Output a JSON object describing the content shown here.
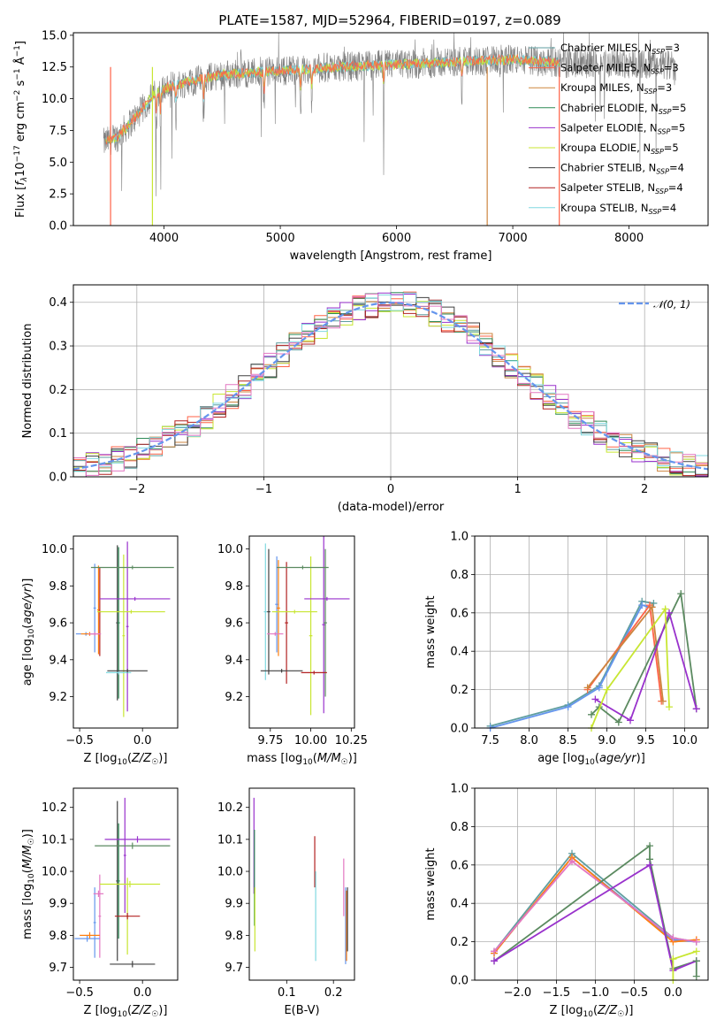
{
  "figure": {
    "title": "PLATE=1587, MJD=52964, FIBERID=0197, z=0.089"
  },
  "colors": {
    "Chabrier MILES": "#5f9ea0",
    "Salpeter MILES": "#ff6347",
    "Kroupa MILES": "#cd853f",
    "Chabrier ELODIE": "#2e8b57",
    "Salpeter ELODIE": "#9932cc",
    "Kroupa ELODIE": "#c8e632",
    "Chabrier STELIB": "#404040",
    "Salpeter STELIB": "#b22222",
    "Kroupa STELIB": "#80d8e0",
    "data": "#808080",
    "pink": "#e377c2",
    "blue": "#6495ed",
    "orange": "#ff7f0e",
    "purple": "#9932cc",
    "green": "#5b8a60",
    "gaussian": "#6495ed"
  },
  "chart_data": [
    {
      "id": "spectrum",
      "type": "line",
      "title": "PLATE=1587, MJD=52964, FIBERID=0197, z=0.089",
      "xlabel": "wavelength [Angstrom, rest frame]",
      "ylabel": "Flux [f_λ 10^-17 erg cm^-2 s^-1 Å^-1]",
      "xlim": [
        3220,
        8680
      ],
      "ylim": [
        0,
        15.2
      ],
      "xticks": [
        4000,
        5000,
        6000,
        7000,
        8000
      ],
      "yticks": [
        0.0,
        2.5,
        5.0,
        7.5,
        10.0,
        12.5,
        15.0
      ],
      "ytick_labels": [
        "0.0",
        "2.5",
        "5.0",
        "7.5",
        "10.0",
        "12.5",
        "15.0"
      ],
      "legend_position": "right",
      "legend": [
        {
          "name": "Chabrier MILES",
          "nssp": "3",
          "color": "#5f9ea0"
        },
        {
          "name": "Salpeter MILES",
          "nssp": "3",
          "color": "#ff6347"
        },
        {
          "name": "Kroupa MILES",
          "nssp": "3",
          "color": "#cd853f"
        },
        {
          "name": "Chabrier ELODIE",
          "nssp": "5",
          "color": "#2e8b57"
        },
        {
          "name": "Salpeter ELODIE",
          "nssp": "5",
          "color": "#9932cc"
        },
        {
          "name": "Kroupa ELODIE",
          "nssp": "5",
          "color": "#c8e632"
        },
        {
          "name": "Chabrier STELIB",
          "nssp": "4",
          "color": "#404040"
        },
        {
          "name": "Salpeter STELIB",
          "nssp": "4",
          "color": "#b22222"
        },
        {
          "name": "Kroupa STELIB",
          "nssp": "4",
          "color": "#80d8e0"
        }
      ],
      "continuum": {
        "x": [
          3480,
          3600,
          3700,
          3800,
          3900,
          4000,
          4200,
          4500,
          5000,
          5500,
          6000,
          6500,
          7000,
          7500,
          8000,
          8400
        ],
        "y": [
          6.5,
          7.0,
          8.0,
          9.0,
          10.2,
          10.8,
          11.3,
          11.9,
          12.2,
          12.5,
          12.7,
          12.9,
          13.1,
          12.8,
          12.8,
          12.6
        ]
      },
      "data_range": [
        3480,
        8400
      ],
      "model_range": [
        3500,
        7400
      ]
    },
    {
      "id": "residuals",
      "type": "bar",
      "xlabel": "(data-model)/error",
      "ylabel": "Normed distribution",
      "xlim": [
        -2.5,
        2.5
      ],
      "ylim": [
        0,
        0.44
      ],
      "xticks": [
        -2,
        -1,
        0,
        1,
        2
      ],
      "xtick_labels": [
        "−2",
        "−1",
        "0",
        "1",
        "2"
      ],
      "yticks": [
        0.0,
        0.1,
        0.2,
        0.3,
        0.4
      ],
      "ytick_labels": [
        "0.0",
        "0.1",
        "0.2",
        "0.3",
        "0.4"
      ],
      "legend": [
        {
          "name": "𝒩(0, 1)",
          "color": "#6495ed",
          "style": "dashed"
        }
      ],
      "bin_edges_start": -2.5,
      "bin_width": 0.1,
      "gaussian": {
        "mu": 0,
        "sigma": 1
      }
    },
    {
      "id": "age-vs-z",
      "type": "scatter",
      "xlabel": "Z [log10(Z/Z☉)]",
      "ylabel": "age [log10(age/yr)]",
      "xlim": [
        -0.55,
        0.28
      ],
      "ylim": [
        9.03,
        10.07
      ],
      "xticks": [
        -0.5,
        0.0
      ],
      "xtick_labels": [
        "−0.5",
        "0.0"
      ],
      "yticks": [
        9.2,
        9.4,
        9.6,
        9.8,
        10.0
      ],
      "ytick_labels": [
        "9.2",
        "9.4",
        "9.6",
        "9.8",
        "10.0"
      ],
      "points": [
        {
          "x": -0.38,
          "y": 9.68,
          "xerr": 0.01,
          "yerr": 0.24,
          "color": "#6495ed"
        },
        {
          "x": -0.35,
          "y": 9.67,
          "xerr": 0.01,
          "yerr": 0.24,
          "color": "#ff7f0e"
        },
        {
          "x": -0.34,
          "y": 9.66,
          "xerr": 0.01,
          "yerr": 0.24,
          "color": "#b22222"
        },
        {
          "x": -0.45,
          "y": 9.54,
          "xerr": 0.08,
          "yerr": 0.01,
          "color": "#6495ed"
        },
        {
          "x": -0.42,
          "y": 9.54,
          "xerr": 0.07,
          "yerr": 0.01,
          "color": "#ff7f0e"
        },
        {
          "x": -0.38,
          "y": 9.54,
          "xerr": 0.05,
          "yerr": 0.01,
          "color": "#e377c2"
        },
        {
          "x": -0.2,
          "y": 9.6,
          "xerr": 0.01,
          "yerr": 0.42,
          "color": "#404040"
        },
        {
          "x": -0.19,
          "y": 9.6,
          "xerr": 0.01,
          "yerr": 0.41,
          "color": "#2e8b57"
        },
        {
          "x": -0.12,
          "y": 9.58,
          "xerr": 0.01,
          "yerr": 0.46,
          "color": "#9932cc"
        },
        {
          "x": -0.15,
          "y": 9.53,
          "xerr": 0.01,
          "yerr": 0.44,
          "color": "#c8e632"
        },
        {
          "x": -0.19,
          "y": 9.33,
          "xerr": 0.1,
          "yerr": 0.01,
          "color": "#80d8e0"
        },
        {
          "x": -0.12,
          "y": 9.34,
          "xerr": 0.16,
          "yerr": 0.01,
          "color": "#404040"
        },
        {
          "x": -0.08,
          "y": 9.9,
          "xerr": 0.33,
          "yerr": 0.01,
          "color": "#5b8a60"
        },
        {
          "x": -0.06,
          "y": 9.73,
          "xerr": 0.28,
          "yerr": 0.01,
          "color": "#9932cc"
        },
        {
          "x": -0.09,
          "y": 9.66,
          "xerr": 0.27,
          "yerr": 0.01,
          "color": "#c8e632"
        }
      ]
    },
    {
      "id": "age-vs-mass",
      "type": "scatter",
      "xlabel": "mass [log10(M/M☉)]",
      "ylabel": "",
      "xlim": [
        9.62,
        10.27
      ],
      "ylim": [
        9.03,
        10.07
      ],
      "xticks": [
        9.75,
        10.0,
        10.25
      ],
      "xtick_labels": [
        "9.75",
        "10.00",
        "10.25"
      ],
      "yticks": [
        9.2,
        9.4,
        9.6,
        9.8,
        10.0
      ],
      "ytick_labels": [
        "9.2",
        "9.4",
        "9.6",
        "9.8",
        "10.0"
      ],
      "points": [
        {
          "x": 9.72,
          "y": 9.66,
          "xerr": 0.01,
          "yerr": 0.37,
          "color": "#80d8e0"
        },
        {
          "x": 9.74,
          "y": 9.66,
          "xerr": 0.01,
          "yerr": 0.34,
          "color": "#404040"
        },
        {
          "x": 9.79,
          "y": 9.7,
          "xerr": 0.01,
          "yerr": 0.26,
          "color": "#6495ed"
        },
        {
          "x": 9.8,
          "y": 9.68,
          "xerr": 0.01,
          "yerr": 0.26,
          "color": "#ff7f0e"
        },
        {
          "x": 9.85,
          "y": 9.6,
          "xerr": 0.01,
          "yerr": 0.33,
          "color": "#b22222"
        },
        {
          "x": 9.78,
          "y": 9.54,
          "xerr": 0.05,
          "yerr": 0.01,
          "color": "#e377c2"
        },
        {
          "x": 9.82,
          "y": 9.34,
          "xerr": 0.13,
          "yerr": 0.01,
          "color": "#404040"
        },
        {
          "x": 10.0,
          "y": 9.53,
          "xerr": 0.01,
          "yerr": 0.43,
          "color": "#c8e632"
        },
        {
          "x": 10.08,
          "y": 9.59,
          "xerr": 0.01,
          "yerr": 0.48,
          "color": "#9932cc"
        },
        {
          "x": 10.09,
          "y": 9.6,
          "xerr": 0.01,
          "yerr": 0.4,
          "color": "#5b8a60"
        },
        {
          "x": 9.95,
          "y": 9.9,
          "xerr": 0.16,
          "yerr": 0.01,
          "color": "#5b8a60"
        },
        {
          "x": 10.1,
          "y": 9.73,
          "xerr": 0.14,
          "yerr": 0.01,
          "color": "#9932cc"
        },
        {
          "x": 9.9,
          "y": 9.66,
          "xerr": 0.14,
          "yerr": 0.01,
          "color": "#c8e632"
        },
        {
          "x": 10.02,
          "y": 9.33,
          "xerr": 0.08,
          "yerr": 0.01,
          "color": "#b22222"
        }
      ]
    },
    {
      "id": "weight-vs-age",
      "type": "line",
      "xlabel": "age [log10(age/yr)]",
      "ylabel": "mass weight",
      "xlim": [
        7.3,
        10.3
      ],
      "ylim": [
        0,
        1.0
      ],
      "xticks": [
        7.5,
        8.0,
        8.5,
        9.0,
        9.5,
        10.0
      ],
      "xtick_labels": [
        "7.5",
        "8.0",
        "8.5",
        "9.0",
        "9.5",
        "10.0"
      ],
      "yticks": [
        0.0,
        0.2,
        0.4,
        0.6,
        0.8,
        1.0
      ],
      "ytick_labels": [
        "0.0",
        "0.2",
        "0.4",
        "0.6",
        "0.8",
        "1.0"
      ],
      "series": [
        {
          "x": [
            7.5,
            8.5,
            8.9,
            9.45,
            9.6
          ],
          "y": [
            0.01,
            0.12,
            0.22,
            0.66,
            0.65
          ],
          "color": "#5f9ea0"
        },
        {
          "x": [
            7.5,
            8.5,
            8.9,
            9.45,
            9.55
          ],
          "y": [
            0.0,
            0.11,
            0.21,
            0.64,
            0.63
          ],
          "color": "#6495ed"
        },
        {
          "x": [
            8.75,
            9.55,
            9.7
          ],
          "y": [
            0.2,
            0.64,
            0.14
          ],
          "color": "#ff6347"
        },
        {
          "x": [
            8.75,
            9.58,
            9.72
          ],
          "y": [
            0.21,
            0.63,
            0.14
          ],
          "color": "#cd853f"
        },
        {
          "x": [
            8.8,
            8.9,
            9.15,
            9.95,
            10.15
          ],
          "y": [
            0.07,
            0.11,
            0.03,
            0.7,
            0.1
          ],
          "color": "#5b8a60"
        },
        {
          "x": [
            8.85,
            9.3,
            9.8,
            10.15
          ],
          "y": [
            0.15,
            0.04,
            0.6,
            0.1
          ],
          "color": "#9932cc"
        },
        {
          "x": [
            8.8,
            9.0,
            9.75,
            9.8
          ],
          "y": [
            0.0,
            0.2,
            0.62,
            0.11
          ],
          "color": "#c8e632"
        }
      ]
    },
    {
      "id": "mass-vs-z",
      "type": "scatter",
      "xlabel": "Z [log10(Z/Z☉)]",
      "ylabel": "mass [log10(M/M☉)]",
      "xlim": [
        -0.55,
        0.28
      ],
      "ylim": [
        9.66,
        10.26
      ],
      "xticks": [
        -0.5,
        0.0
      ],
      "xtick_labels": [
        "−0.5",
        "0.0"
      ],
      "yticks": [
        9.7,
        9.8,
        9.9,
        10.0,
        10.1,
        10.2
      ],
      "ytick_labels": [
        "9.7",
        "9.8",
        "9.9",
        "10.0",
        "10.1",
        "10.2"
      ],
      "points": [
        {
          "x": -0.38,
          "y": 9.84,
          "xerr": 0.01,
          "yerr": 0.11,
          "color": "#6495ed"
        },
        {
          "x": -0.34,
          "y": 9.86,
          "xerr": 0.01,
          "yerr": 0.13,
          "color": "#e377c2"
        },
        {
          "x": -0.44,
          "y": 9.79,
          "xerr": 0.1,
          "yerr": 0.01,
          "color": "#6495ed"
        },
        {
          "x": -0.42,
          "y": 9.8,
          "xerr": 0.08,
          "yerr": 0.01,
          "color": "#ff7f0e"
        },
        {
          "x": -0.35,
          "y": 9.93,
          "xerr": 0.04,
          "yerr": 0.01,
          "color": "#e377c2"
        },
        {
          "x": -0.2,
          "y": 9.97,
          "xerr": 0.01,
          "yerr": 0.25,
          "color": "#404040"
        },
        {
          "x": -0.19,
          "y": 9.97,
          "xerr": 0.01,
          "yerr": 0.18,
          "color": "#2e8b57"
        },
        {
          "x": -0.14,
          "y": 10.05,
          "xerr": 0.01,
          "yerr": 0.18,
          "color": "#9932cc"
        },
        {
          "x": -0.12,
          "y": 9.86,
          "xerr": 0.01,
          "yerr": 0.12,
          "color": "#c8e632"
        },
        {
          "x": -0.08,
          "y": 10.08,
          "xerr": 0.3,
          "yerr": 0.01,
          "color": "#5b8a60"
        },
        {
          "x": -0.04,
          "y": 10.1,
          "xerr": 0.26,
          "yerr": 0.01,
          "color": "#9932cc"
        },
        {
          "x": -0.1,
          "y": 9.96,
          "xerr": 0.24,
          "yerr": 0.01,
          "color": "#c8e632"
        },
        {
          "x": -0.12,
          "y": 9.86,
          "xerr": 0.1,
          "yerr": 0.01,
          "color": "#b22222"
        },
        {
          "x": -0.08,
          "y": 9.71,
          "xerr": 0.18,
          "yerr": 0.01,
          "color": "#404040"
        }
      ]
    },
    {
      "id": "mass-vs-ebv",
      "type": "scatter",
      "xlabel": "E(B-V)",
      "ylabel": "",
      "xlim": [
        0.02,
        0.245
      ],
      "ylim": [
        9.66,
        10.26
      ],
      "xticks": [
        0.1,
        0.2
      ],
      "xtick_labels": [
        "0.1",
        "0.2"
      ],
      "yticks": [
        9.7,
        9.8,
        9.9,
        10.0,
        10.1,
        10.2
      ],
      "ytick_labels": [
        "9.7",
        "9.8",
        "9.9",
        "10.0",
        "10.1",
        "10.2"
      ],
      "points": [
        {
          "x": 0.03,
          "y": 10.08,
          "xerr": 0.0,
          "yerr": 0.15,
          "color": "#9932cc"
        },
        {
          "x": 0.031,
          "y": 9.98,
          "xerr": 0.0,
          "yerr": 0.15,
          "color": "#2e8b57"
        },
        {
          "x": 0.032,
          "y": 9.85,
          "xerr": 0.0,
          "yerr": 0.1,
          "color": "#c8e632"
        },
        {
          "x": 0.16,
          "y": 10.03,
          "xerr": 0.0,
          "yerr": 0.08,
          "color": "#b22222"
        },
        {
          "x": 0.162,
          "y": 9.86,
          "xerr": 0.0,
          "yerr": 0.14,
          "color": "#80d8e0"
        },
        {
          "x": 0.222,
          "y": 9.95,
          "xerr": 0.0,
          "yerr": 0.09,
          "color": "#e377c2"
        },
        {
          "x": 0.226,
          "y": 9.83,
          "xerr": 0.0,
          "yerr": 0.12,
          "color": "#6495ed"
        },
        {
          "x": 0.228,
          "y": 9.83,
          "xerr": 0.0,
          "yerr": 0.11,
          "color": "#ff7f0e"
        },
        {
          "x": 0.23,
          "y": 9.85,
          "xerr": 0.0,
          "yerr": 0.1,
          "color": "#404040"
        }
      ]
    },
    {
      "id": "weight-vs-z",
      "type": "line",
      "xlabel": "Z [log10(Z/Z☉)]",
      "ylabel": "mass weight",
      "xlim": [
        -2.55,
        0.45
      ],
      "ylim": [
        0,
        1.0
      ],
      "xticks": [
        -2.0,
        -1.5,
        -1.0,
        -0.5,
        0.0
      ],
      "xtick_labels": [
        "−2.0",
        "−1.5",
        "−1.0",
        "−0.5",
        "0.0"
      ],
      "yticks": [
        0.0,
        0.2,
        0.4,
        0.6,
        0.8,
        1.0
      ],
      "ytick_labels": [
        "0.0",
        "0.2",
        "0.4",
        "0.6",
        "0.8",
        "1.0"
      ],
      "series": [
        {
          "x": [
            -2.3,
            -1.3,
            0.0,
            0.3
          ],
          "y": [
            0.15,
            0.66,
            0.22,
            0.2
          ],
          "color": "#5f9ea0"
        },
        {
          "x": [
            -2.3,
            -1.3,
            0.0,
            0.3
          ],
          "y": [
            0.14,
            0.64,
            0.21,
            0.2
          ],
          "color": "#6495ed"
        },
        {
          "x": [
            -2.3,
            -1.3,
            0.0,
            0.3
          ],
          "y": [
            0.14,
            0.64,
            0.2,
            0.21
          ],
          "color": "#ff7f0e"
        },
        {
          "x": [
            -2.3,
            -1.3,
            0.0,
            0.3
          ],
          "y": [
            0.15,
            0.62,
            0.22,
            0.2
          ],
          "color": "#e377c2"
        },
        {
          "x": [
            -2.3,
            -0.3,
            -0.3,
            0.0,
            0.3
          ],
          "y": [
            0.1,
            0.7,
            0.63,
            0.06,
            0.1
          ],
          "color": "#5b8a60"
        },
        {
          "x": [
            -2.3,
            -0.3,
            0.0,
            0.3
          ],
          "y": [
            0.1,
            0.6,
            0.05,
            0.1
          ],
          "color": "#9932cc"
        },
        {
          "x": [
            0.0,
            0.0,
            0.3
          ],
          "y": [
            0.0,
            0.11,
            0.15
          ],
          "color": "#c8e632"
        },
        {
          "x": [
            0.3,
            0.3
          ],
          "y": [
            0.02,
            0.1
          ],
          "color": "#5b8a60"
        }
      ]
    }
  ]
}
